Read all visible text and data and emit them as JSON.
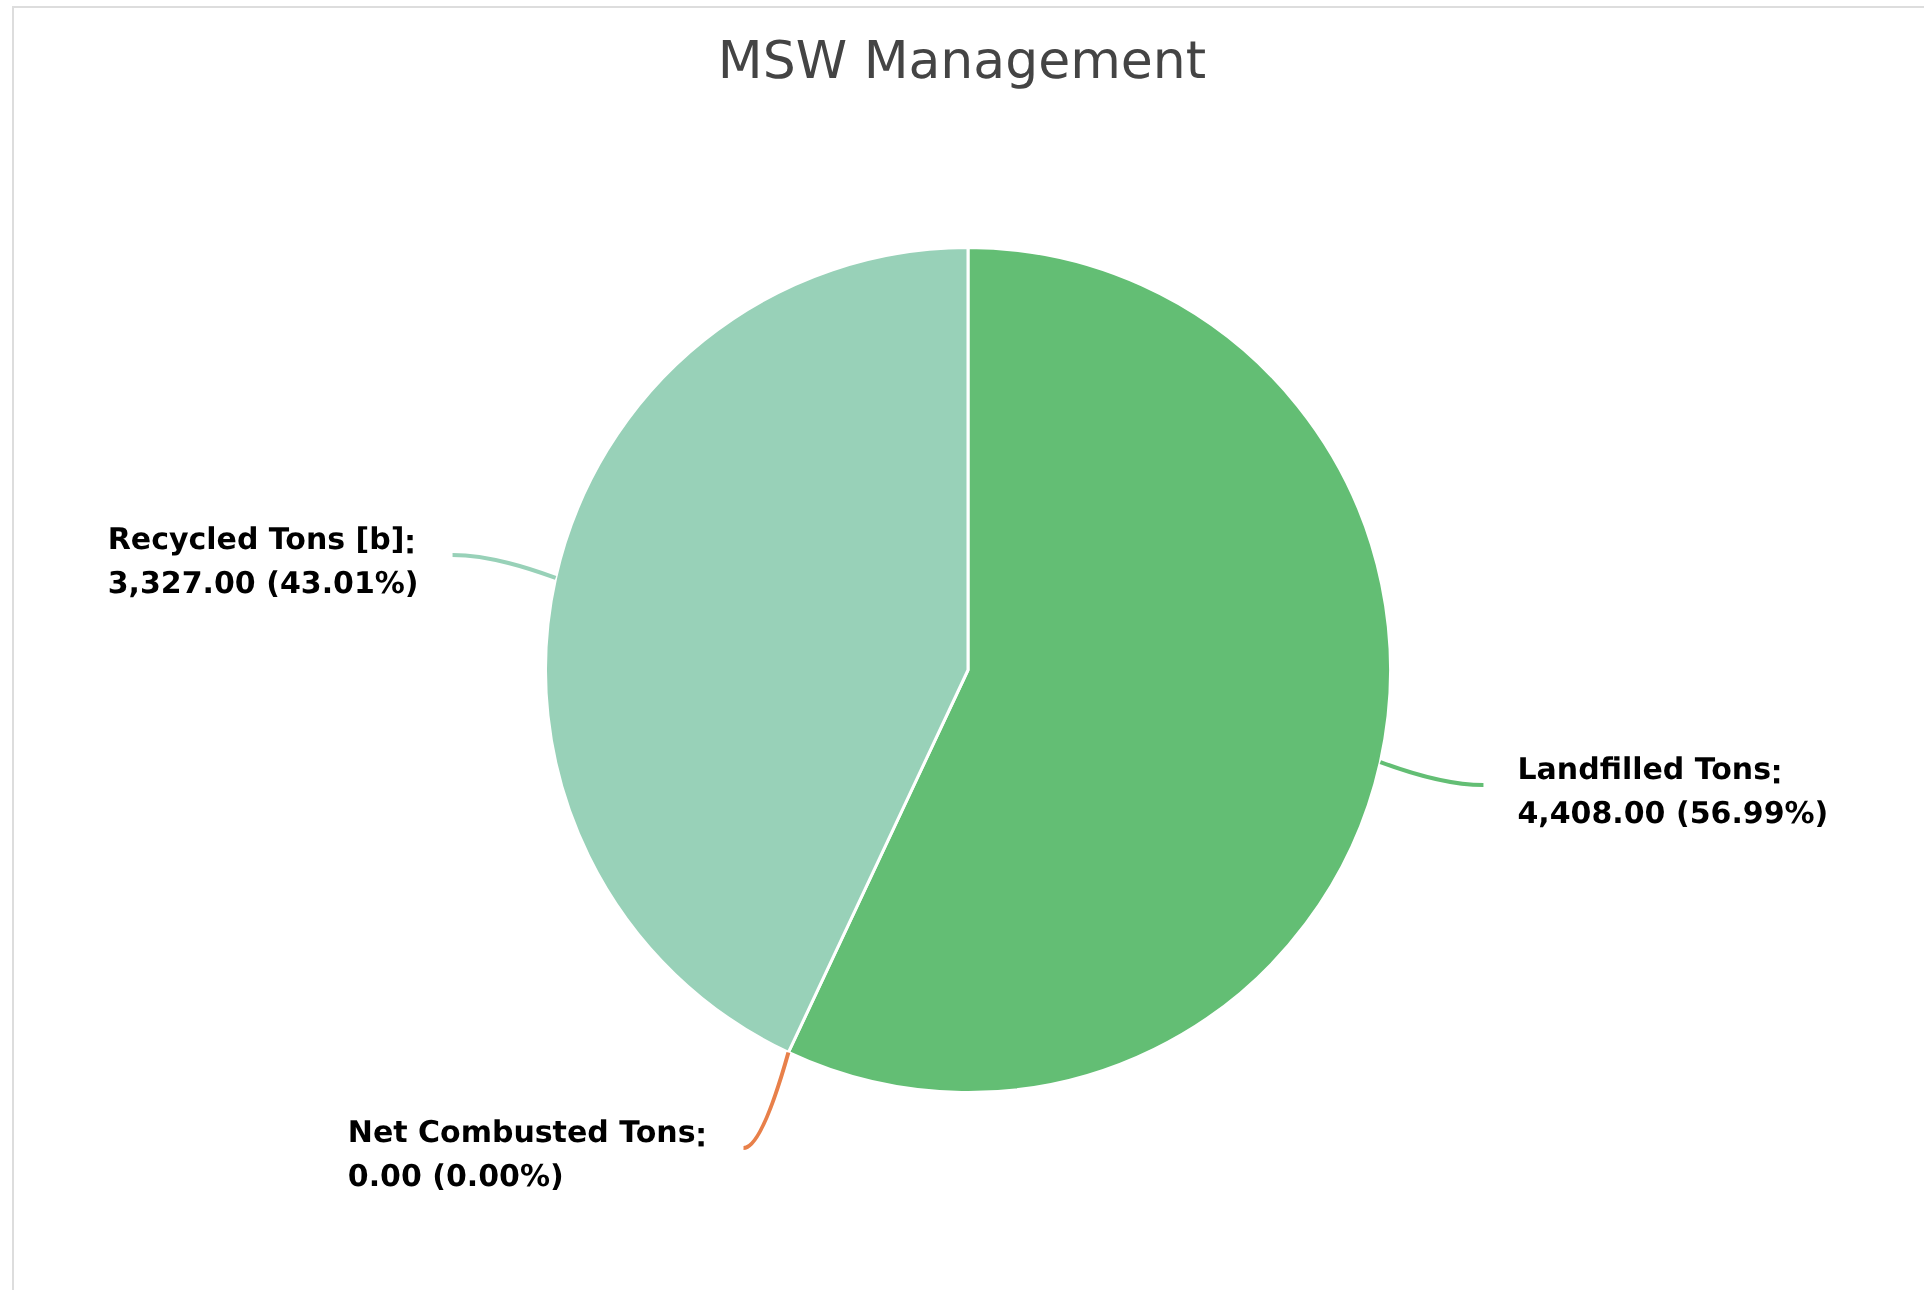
{
  "chart_data": {
    "type": "pie",
    "title": "MSW Management",
    "categories": [
      "Landfilled Tons",
      "Net Combusted Tons",
      "Recycled Tons [b]"
    ],
    "values": [
      4408,
      0,
      3327
    ],
    "value_labels": [
      "4,408.00 (56.99%)",
      "0.00 (0.00%)",
      "3,327.00 (43.01%)"
    ],
    "colors": [
      "#63be74",
      "#e8804a",
      "#98d1b8"
    ]
  }
}
